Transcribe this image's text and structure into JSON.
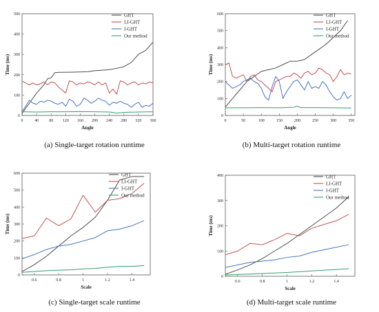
{
  "chart_data": [
    {
      "type": "line",
      "caption": "(a) Single-target rotation runtime",
      "xlabel": "Angle",
      "ylabel": "Time (ms)",
      "xlim": [
        0,
        360
      ],
      "ylim": [
        0,
        500
      ],
      "xticks": [
        0,
        40,
        80,
        120,
        160,
        200,
        240,
        280,
        320,
        360
      ],
      "yticks": [
        0,
        100,
        200,
        300,
        400,
        500
      ],
      "legend_position": "top-right",
      "series": [
        {
          "name": "GHT",
          "color": "#4a4a4a",
          "x": [
            0,
            20,
            40,
            60,
            70,
            80,
            90,
            100,
            140,
            180,
            200,
            240,
            270,
            280,
            300,
            320,
            330,
            340,
            350,
            360
          ],
          "y": [
            10,
            60,
            110,
            150,
            180,
            185,
            210,
            212,
            213,
            215,
            220,
            225,
            235,
            240,
            260,
            300,
            310,
            320,
            340,
            360
          ]
        },
        {
          "name": "LI-GHT",
          "color": "#c0504d",
          "x": [
            0,
            10,
            20,
            30,
            40,
            50,
            60,
            70,
            80,
            90,
            100,
            110,
            120,
            130,
            140,
            150,
            160,
            170,
            180,
            190,
            200,
            210,
            220,
            230,
            240,
            250,
            260,
            270,
            280,
            290,
            300,
            310,
            320,
            330,
            340,
            350,
            360
          ],
          "y": [
            170,
            160,
            150,
            160,
            150,
            155,
            165,
            150,
            165,
            160,
            140,
            125,
            110,
            170,
            165,
            150,
            160,
            155,
            165,
            160,
            150,
            165,
            150,
            160,
            110,
            130,
            105,
            170,
            165,
            150,
            160,
            165,
            150,
            160,
            155,
            165,
            160
          ]
        },
        {
          "name": "I-GHT",
          "color": "#4472c4",
          "x": [
            0,
            10,
            20,
            30,
            40,
            50,
            60,
            70,
            80,
            90,
            100,
            110,
            120,
            130,
            140,
            150,
            160,
            170,
            180,
            190,
            200,
            210,
            220,
            230,
            240,
            250,
            260,
            270,
            280,
            290,
            300,
            310,
            320,
            330,
            340,
            350,
            360
          ],
          "y": [
            20,
            45,
            75,
            60,
            55,
            70,
            65,
            75,
            70,
            60,
            55,
            65,
            45,
            80,
            70,
            45,
            55,
            85,
            75,
            60,
            70,
            85,
            75,
            70,
            50,
            65,
            60,
            70,
            60,
            55,
            40,
            55,
            65,
            40,
            50,
            45,
            60
          ]
        },
        {
          "name": "Our method",
          "color": "#2e9e6e",
          "x": [
            0,
            40,
            80,
            120,
            160,
            200,
            240,
            260,
            280,
            320,
            360
          ],
          "y": [
            18,
            17,
            18,
            18,
            19,
            18,
            17,
            12,
            15,
            17,
            18
          ]
        }
      ]
    },
    {
      "type": "line",
      "caption": "(b) Multi-target rotation runtime",
      "xlabel": "Angle",
      "ylabel": "Time (ms)",
      "xlim": [
        0,
        360
      ],
      "ylim": [
        0,
        600
      ],
      "xticks": [
        0,
        50,
        100,
        150,
        200,
        250,
        300,
        350
      ],
      "yticks": [
        0,
        100,
        200,
        300,
        400,
        500,
        600
      ],
      "legend_position": "top-right",
      "series": [
        {
          "name": "GHT",
          "color": "#4a4a4a",
          "x": [
            0,
            20,
            40,
            60,
            80,
            100,
            120,
            140,
            160,
            180,
            200,
            220,
            240,
            260,
            280,
            300,
            320,
            340
          ],
          "y": [
            50,
            100,
            150,
            200,
            230,
            260,
            270,
            280,
            300,
            320,
            320,
            330,
            360,
            390,
            420,
            460,
            500,
            560
          ]
        },
        {
          "name": "LI-GHT",
          "color": "#c0504d",
          "x": [
            0,
            10,
            20,
            30,
            40,
            50,
            60,
            70,
            80,
            90,
            100,
            110,
            120,
            130,
            140,
            150,
            160,
            170,
            180,
            190,
            200,
            210,
            220,
            230,
            240,
            250,
            260,
            270,
            280,
            290,
            300,
            310,
            320,
            330,
            340,
            350
          ],
          "y": [
            300,
            310,
            230,
            220,
            230,
            240,
            200,
            230,
            240,
            210,
            200,
            180,
            160,
            140,
            200,
            210,
            220,
            230,
            230,
            250,
            240,
            220,
            250,
            260,
            240,
            250,
            280,
            270,
            250,
            240,
            200,
            230,
            270,
            240,
            250,
            245
          ]
        },
        {
          "name": "I-GHT",
          "color": "#4472c4",
          "x": [
            0,
            10,
            20,
            30,
            40,
            50,
            60,
            70,
            80,
            90,
            100,
            110,
            120,
            130,
            140,
            150,
            160,
            170,
            180,
            190,
            200,
            210,
            220,
            230,
            240,
            250,
            260,
            270,
            280,
            290,
            300,
            310,
            320,
            330,
            340,
            350
          ],
          "y": [
            200,
            180,
            160,
            170,
            180,
            200,
            210,
            220,
            200,
            190,
            160,
            110,
            90,
            170,
            230,
            200,
            100,
            140,
            170,
            200,
            210,
            180,
            150,
            200,
            160,
            170,
            160,
            200,
            180,
            140,
            110,
            90,
            100,
            140,
            100,
            120
          ]
        },
        {
          "name": "Our method",
          "color": "#2e9e6e",
          "x": [
            0,
            50,
            100,
            150,
            190,
            200,
            210,
            250,
            300,
            350
          ],
          "y": [
            45,
            45,
            46,
            45,
            48,
            55,
            46,
            46,
            45,
            44
          ]
        }
      ]
    },
    {
      "type": "line",
      "caption": "(c) Single-target scale runtime",
      "xlabel": "Scale",
      "ylabel": "Time (ms)",
      "xlim": [
        0.5,
        1.55
      ],
      "ylim": [
        0,
        600
      ],
      "xticks": [
        0.6,
        0.8,
        1.0,
        1.2,
        1.4
      ],
      "yticks": [
        0,
        100,
        200,
        300,
        400,
        500,
        600
      ],
      "legend_position": "top-right",
      "series": [
        {
          "name": "GHT",
          "color": "#4a4a4a",
          "x": [
            0.5,
            0.6,
            0.7,
            0.8,
            0.9,
            1.0,
            1.1,
            1.2,
            1.3,
            1.4,
            1.5
          ],
          "y": [
            20,
            60,
            110,
            170,
            230,
            280,
            340,
            440,
            560,
            580,
            580
          ]
        },
        {
          "name": "LI-GHT",
          "color": "#c0504d",
          "x": [
            0.5,
            0.6,
            0.7,
            0.8,
            0.9,
            1.0,
            1.1,
            1.2,
            1.3,
            1.4,
            1.5
          ],
          "y": [
            215,
            230,
            335,
            290,
            330,
            470,
            370,
            440,
            450,
            480,
            540
          ]
        },
        {
          "name": "I-GHT",
          "color": "#4472c4",
          "x": [
            0.5,
            0.6,
            0.7,
            0.8,
            0.9,
            1.0,
            1.1,
            1.2,
            1.3,
            1.4,
            1.5
          ],
          "y": [
            95,
            120,
            150,
            170,
            180,
            200,
            220,
            260,
            270,
            290,
            320
          ]
        },
        {
          "name": "Our method",
          "color": "#2e9e6e",
          "x": [
            0.5,
            0.6,
            0.7,
            0.8,
            0.9,
            1.0,
            1.1,
            1.2,
            1.3,
            1.4,
            1.5
          ],
          "y": [
            15,
            20,
            25,
            28,
            30,
            35,
            38,
            45,
            50,
            50,
            55
          ]
        }
      ]
    },
    {
      "type": "line",
      "caption": "(d) Multi-target scale runtime",
      "xlabel": "Scale",
      "ylabel": "Time (ms)",
      "xlim": [
        0.5,
        1.55
      ],
      "ylim": [
        0,
        400
      ],
      "xticks": [
        0.6,
        0.8,
        1.0,
        1.2,
        1.4
      ],
      "yticks": [
        0,
        100,
        200,
        300,
        400
      ],
      "legend_position": "top-right",
      "series": [
        {
          "name": "GHT",
          "color": "#4a4a4a",
          "x": [
            0.5,
            0.6,
            0.7,
            0.8,
            0.9,
            1.0,
            1.1,
            1.2,
            1.3,
            1.4,
            1.5
          ],
          "y": [
            8,
            25,
            45,
            70,
            100,
            130,
            165,
            200,
            235,
            270,
            315
          ]
        },
        {
          "name": "LI-GHT",
          "color": "#c0504d",
          "x": [
            0.5,
            0.6,
            0.7,
            0.8,
            0.9,
            1.0,
            1.1,
            1.2,
            1.3,
            1.4,
            1.5
          ],
          "y": [
            85,
            100,
            130,
            125,
            145,
            170,
            160,
            190,
            205,
            220,
            245
          ]
        },
        {
          "name": "I-GHT",
          "color": "#4472c4",
          "x": [
            0.5,
            0.6,
            0.7,
            0.8,
            0.9,
            1.0,
            1.1,
            1.2,
            1.3,
            1.4,
            1.5
          ],
          "y": [
            35,
            45,
            55,
            60,
            65,
            75,
            80,
            95,
            105,
            115,
            125
          ]
        },
        {
          "name": "Our method",
          "color": "#2e9e6e",
          "x": [
            0.5,
            0.6,
            0.7,
            0.8,
            0.9,
            1.0,
            1.1,
            1.2,
            1.3,
            1.4,
            1.5
          ],
          "y": [
            5,
            7,
            9,
            11,
            13,
            15,
            18,
            21,
            24,
            27,
            30
          ]
        }
      ]
    }
  ]
}
